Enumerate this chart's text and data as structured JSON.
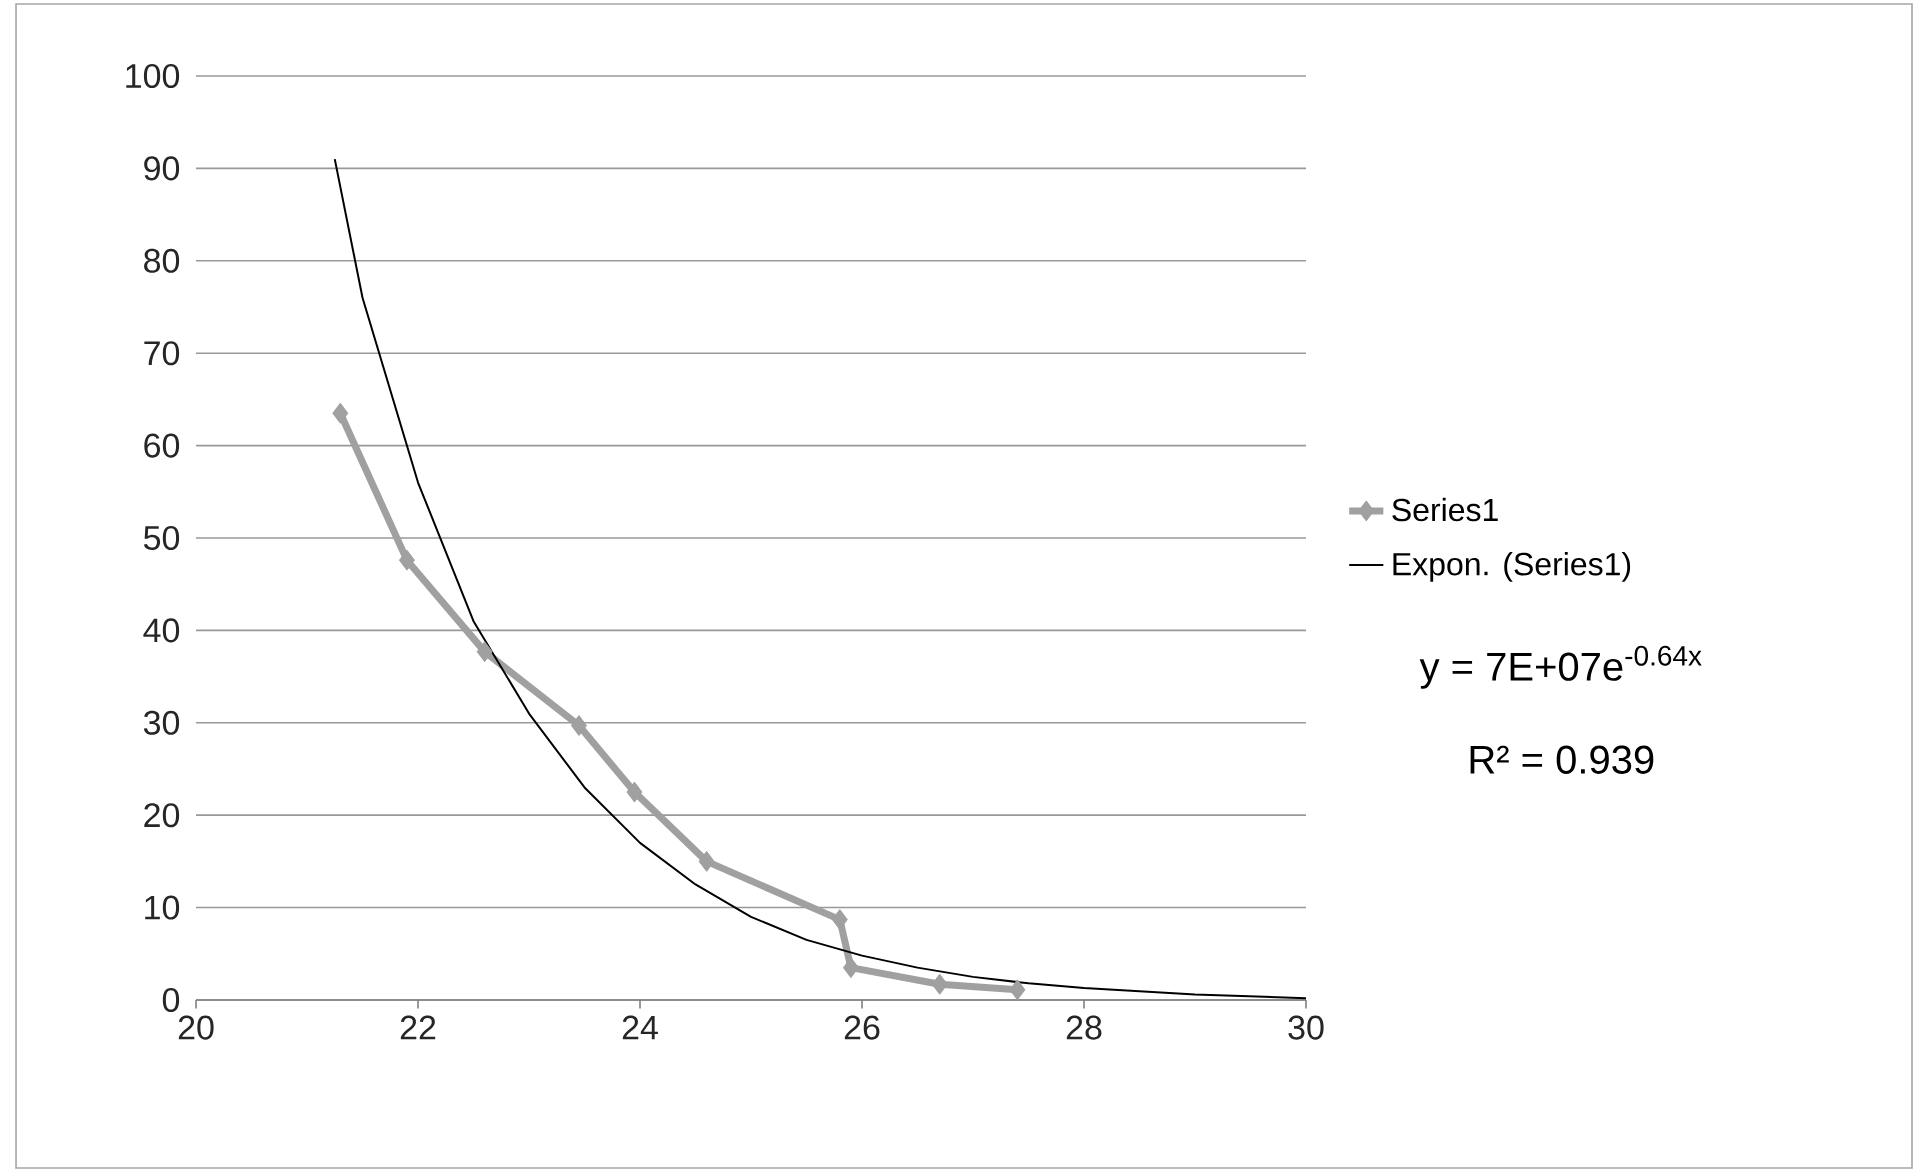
{
  "chart_data": {
    "type": "line",
    "series": [
      {
        "name": "Series1",
        "color": "#a0a0a0",
        "marker": "diamond",
        "x": [
          21.3,
          21.9,
          22.6,
          23.45,
          23.95,
          24.6,
          25.8,
          25.9,
          26.7,
          27.4
        ],
        "values": [
          63.5,
          47.6,
          37.7,
          29.7,
          22.5,
          15,
          8.7,
          3.5,
          1.7,
          1.1
        ]
      },
      {
        "name": "Expon. (Series1)",
        "color": "#000000",
        "marker": "none",
        "x": [
          21.25,
          21.5,
          22,
          22.5,
          23,
          23.5,
          24,
          24.5,
          25,
          25.5,
          26,
          26.5,
          27,
          27.5,
          28,
          29,
          30
        ],
        "values": [
          91,
          76,
          56,
          41,
          31,
          23,
          17,
          12.5,
          9,
          6.5,
          4.8,
          3.5,
          2.5,
          1.8,
          1.3,
          0.6,
          0.2
        ]
      }
    ],
    "xlim": [
      20,
      30
    ],
    "xticks": [
      20,
      22,
      24,
      26,
      28,
      30
    ],
    "ylim": [
      0,
      100
    ],
    "yticks": [
      0,
      10,
      20,
      30,
      40,
      50,
      60,
      70,
      80,
      90,
      100
    ],
    "grid": "y",
    "legend": "right",
    "annotations": [
      "y = 7E+07e$^{-0.64x}$",
      "R² = 0.939"
    ]
  }
}
